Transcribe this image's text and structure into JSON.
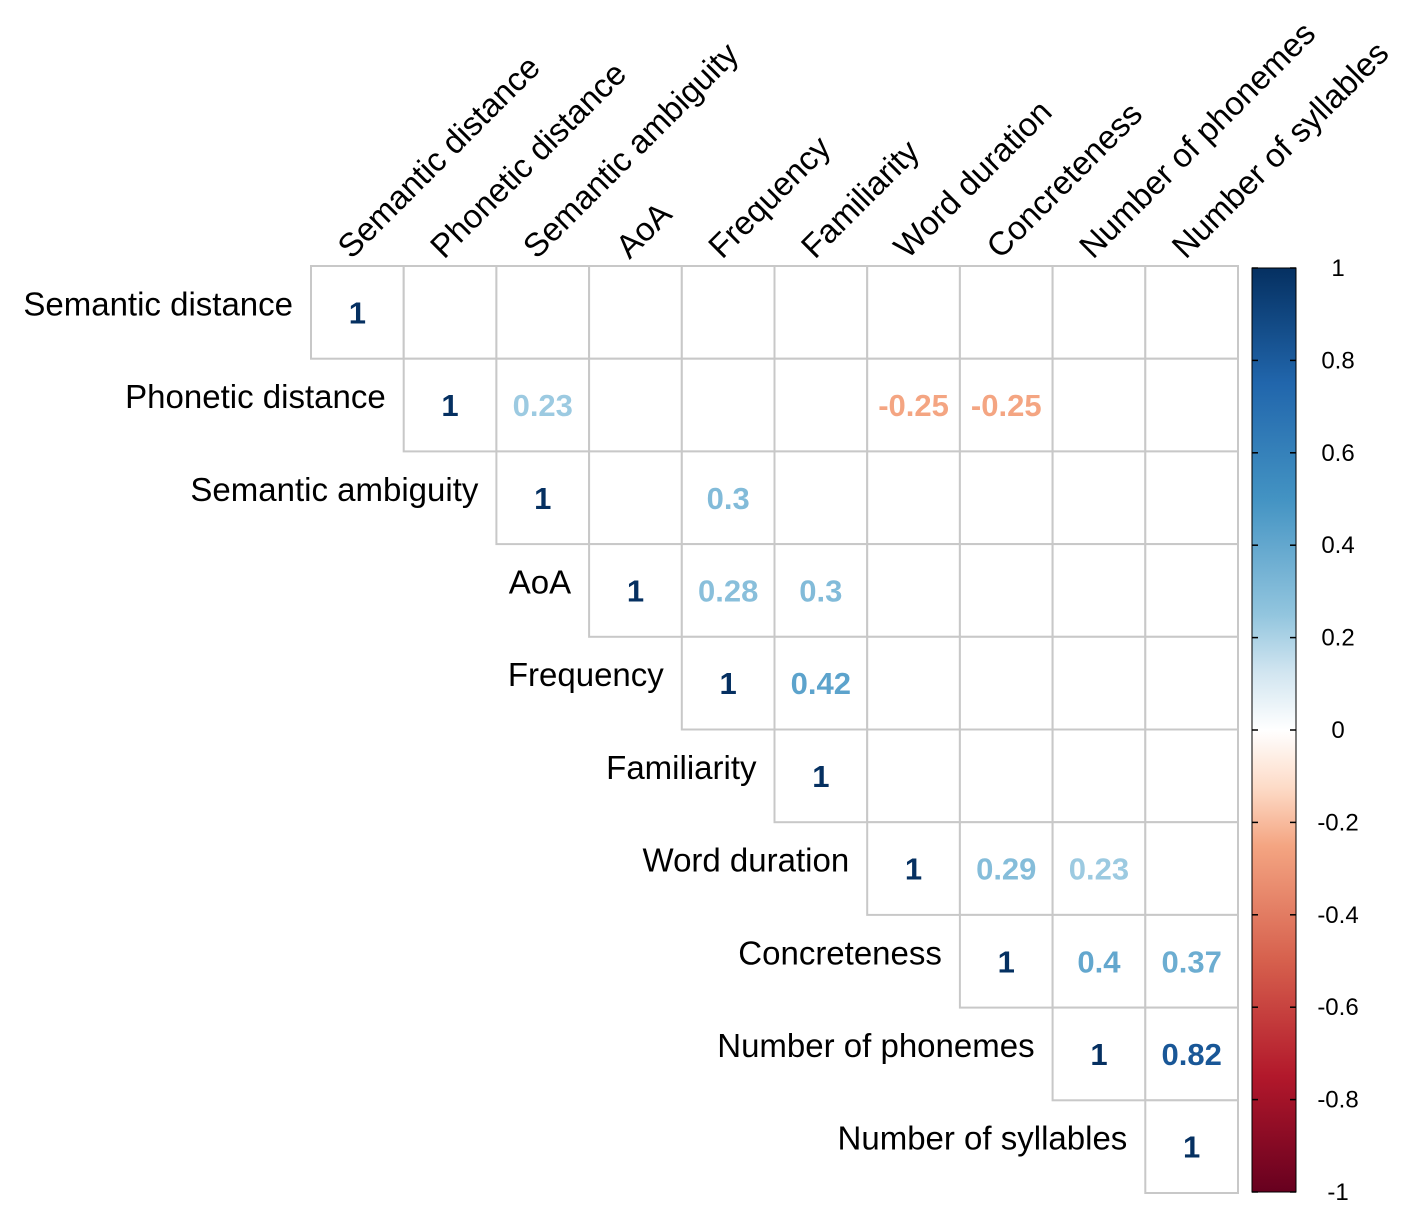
{
  "chart_data": {
    "type": "heatmap",
    "variables": [
      "Semantic distance",
      "Phonetic distance",
      "Semantic ambiguity",
      "AoA",
      "Frequency",
      "Familiarity",
      "Word duration",
      "Concreteness",
      "Number of phonemes",
      "Number of syllables"
    ],
    "layout": "upper-triangle",
    "cells": [
      {
        "row": 0,
        "col": 0,
        "value": 1,
        "label": "1"
      },
      {
        "row": 1,
        "col": 1,
        "value": 1,
        "label": "1"
      },
      {
        "row": 1,
        "col": 2,
        "value": 0.23,
        "label": "0.23"
      },
      {
        "row": 1,
        "col": 6,
        "value": -0.25,
        "label": "-0.25"
      },
      {
        "row": 1,
        "col": 7,
        "value": -0.25,
        "label": "-0.25"
      },
      {
        "row": 2,
        "col": 2,
        "value": 1,
        "label": "1"
      },
      {
        "row": 2,
        "col": 4,
        "value": 0.3,
        "label": "0.3"
      },
      {
        "row": 3,
        "col": 3,
        "value": 1,
        "label": "1"
      },
      {
        "row": 3,
        "col": 4,
        "value": 0.28,
        "label": "0.28"
      },
      {
        "row": 3,
        "col": 5,
        "value": 0.3,
        "label": "0.3"
      },
      {
        "row": 4,
        "col": 4,
        "value": 1,
        "label": "1"
      },
      {
        "row": 4,
        "col": 5,
        "value": 0.42,
        "label": "0.42"
      },
      {
        "row": 5,
        "col": 5,
        "value": 1,
        "label": "1"
      },
      {
        "row": 6,
        "col": 6,
        "value": 1,
        "label": "1"
      },
      {
        "row": 6,
        "col": 7,
        "value": 0.29,
        "label": "0.29"
      },
      {
        "row": 6,
        "col": 8,
        "value": 0.23,
        "label": "0.23"
      },
      {
        "row": 7,
        "col": 7,
        "value": 1,
        "label": "1"
      },
      {
        "row": 7,
        "col": 8,
        "value": 0.4,
        "label": "0.4"
      },
      {
        "row": 7,
        "col": 9,
        "value": 0.37,
        "label": "0.37"
      },
      {
        "row": 8,
        "col": 8,
        "value": 1,
        "label": "1"
      },
      {
        "row": 8,
        "col": 9,
        "value": 0.82,
        "label": "0.82"
      },
      {
        "row": 9,
        "col": 9,
        "value": 1,
        "label": "1"
      }
    ],
    "colorbar": {
      "range": [
        -1,
        1
      ],
      "ticks": [
        "1",
        "0.8",
        "0.6",
        "0.4",
        "0.2",
        "0",
        "-0.2",
        "-0.4",
        "-0.6",
        "-0.8",
        "-1"
      ],
      "colors": {
        "neg_strong": "#67001F",
        "neg_mid": "#D6604D",
        "neg_light": "#F4A582",
        "neg_pale": "#FDDBC7",
        "zero": "#FFFFFF",
        "pos_pale": "#D1E5F0",
        "pos_light": "#92C5DE",
        "pos_mid": "#4393C3",
        "pos_strong": "#053061"
      }
    }
  }
}
